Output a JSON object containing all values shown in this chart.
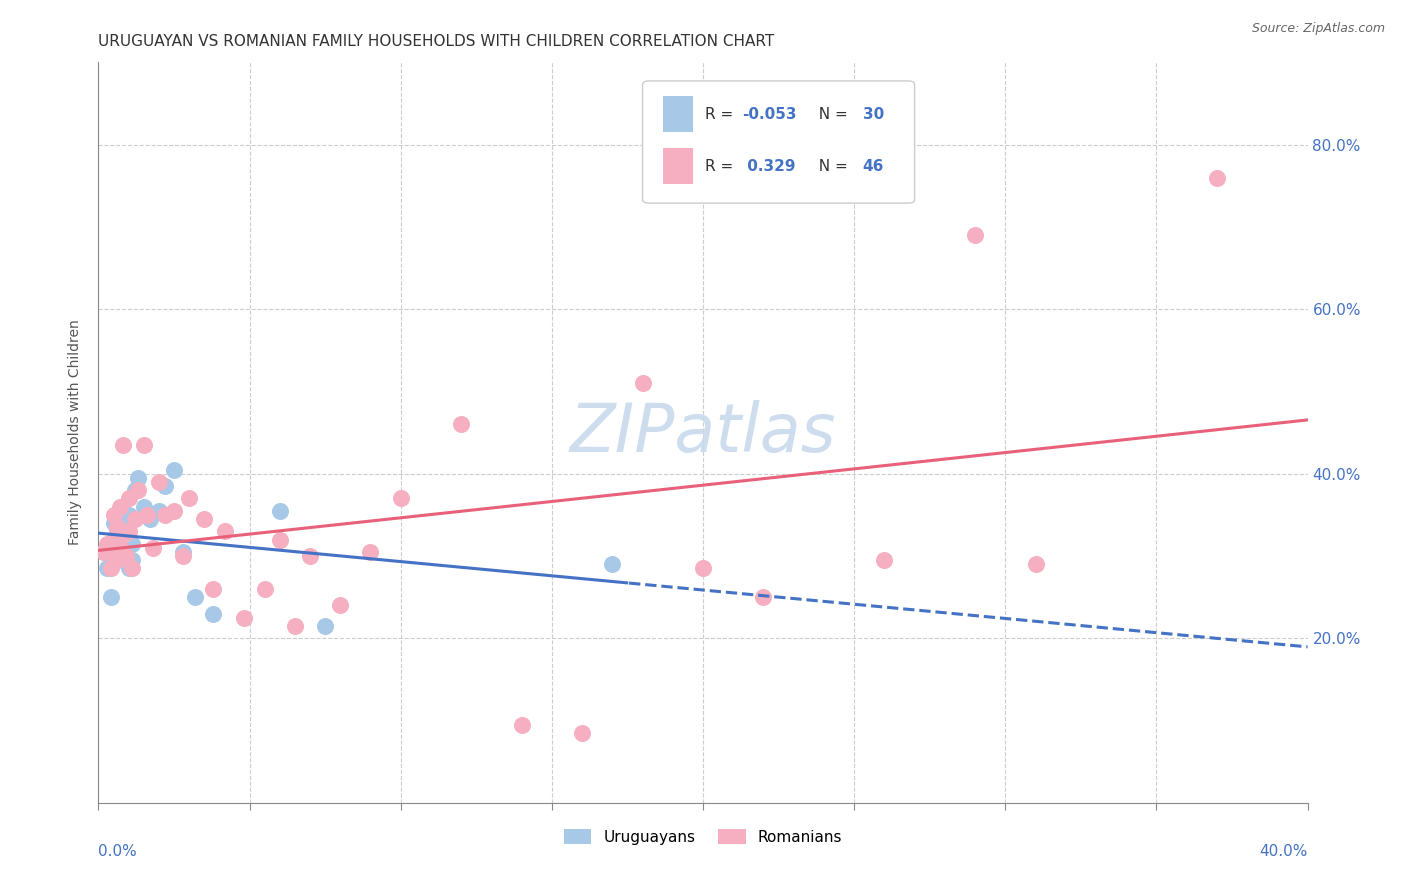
{
  "title": "URUGUAYAN VS ROMANIAN FAMILY HOUSEHOLDS WITH CHILDREN CORRELATION CHART",
  "source": "Source: ZipAtlas.com",
  "ylabel": "Family Households with Children",
  "legend_uruguayan": "Uruguayans",
  "legend_romanian": "Romanians",
  "uruguayan_color": "#a8c8e8",
  "romanian_color": "#f5afc0",
  "uruguayan_line_color": "#4472c4",
  "romanian_line_color": "#e8607a",
  "background_color": "#ffffff",
  "grid_color": "#cccccc",
  "watermark": "ZIPatlas",
  "watermark_color": "#c5d8ec",
  "x_uruguayan": [
    0.002,
    0.003,
    0.004,
    0.005,
    0.005,
    0.006,
    0.006,
    0.007,
    0.007,
    0.008,
    0.008,
    0.009,
    0.009,
    0.01,
    0.01,
    0.011,
    0.011,
    0.012,
    0.013,
    0.015,
    0.017,
    0.02,
    0.022,
    0.025,
    0.028,
    0.032,
    0.038,
    0.06,
    0.075,
    0.17
  ],
  "y_uruguayan": [
    0.305,
    0.285,
    0.25,
    0.32,
    0.34,
    0.295,
    0.33,
    0.31,
    0.355,
    0.325,
    0.345,
    0.305,
    0.33,
    0.285,
    0.35,
    0.295,
    0.315,
    0.38,
    0.395,
    0.36,
    0.345,
    0.355,
    0.385,
    0.405,
    0.305,
    0.25,
    0.23,
    0.355,
    0.215,
    0.29
  ],
  "x_romanian": [
    0.002,
    0.003,
    0.004,
    0.005,
    0.005,
    0.006,
    0.006,
    0.007,
    0.007,
    0.008,
    0.008,
    0.009,
    0.01,
    0.01,
    0.011,
    0.012,
    0.013,
    0.015,
    0.016,
    0.018,
    0.02,
    0.022,
    0.025,
    0.028,
    0.03,
    0.035,
    0.038,
    0.042,
    0.048,
    0.055,
    0.06,
    0.065,
    0.07,
    0.08,
    0.09,
    0.1,
    0.12,
    0.14,
    0.16,
    0.18,
    0.2,
    0.22,
    0.26,
    0.29,
    0.31,
    0.37
  ],
  "y_romanian": [
    0.305,
    0.315,
    0.285,
    0.32,
    0.35,
    0.295,
    0.335,
    0.31,
    0.36,
    0.325,
    0.435,
    0.3,
    0.37,
    0.33,
    0.285,
    0.345,
    0.38,
    0.435,
    0.35,
    0.31,
    0.39,
    0.35,
    0.355,
    0.3,
    0.37,
    0.345,
    0.26,
    0.33,
    0.225,
    0.26,
    0.32,
    0.215,
    0.3,
    0.24,
    0.305,
    0.37,
    0.46,
    0.095,
    0.085,
    0.51,
    0.285,
    0.25,
    0.295,
    0.69,
    0.29,
    0.76
  ],
  "xlim": [
    0.0,
    0.4
  ],
  "ylim": [
    0.0,
    0.9
  ],
  "title_fontsize": 11,
  "tick_fontsize": 11,
  "watermark_fontsize": 48,
  "source_fontsize": 9
}
